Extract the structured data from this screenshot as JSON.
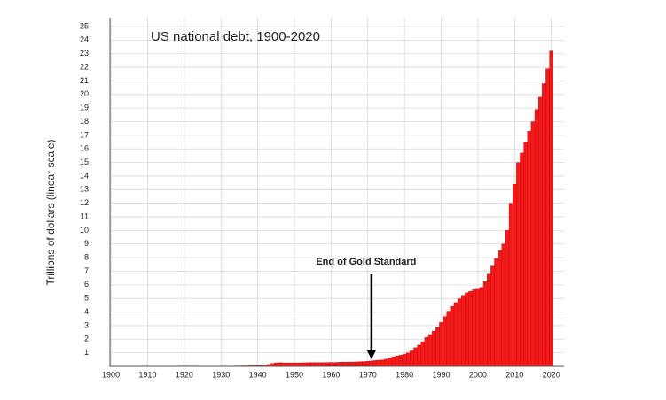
{
  "chart_data": {
    "type": "bar",
    "title": "US national debt, 1900-2020",
    "ylabel": "Trillions of dollars (linear scale)",
    "annotation": {
      "text": "End of Gold Standard",
      "x": 1971
    },
    "color": "#f21b1b",
    "grid": true,
    "xlim": [
      1899.5,
      2022.5
    ],
    "xticks": [
      1900,
      1910,
      1920,
      1930,
      1940,
      1950,
      1960,
      1970,
      1980,
      1990,
      2000,
      2010,
      2020
    ],
    "ylim": [
      0,
      25
    ],
    "yticks": [
      1,
      2,
      3,
      4,
      5,
      6,
      7,
      8,
      9,
      10,
      11,
      12,
      13,
      14,
      15,
      16,
      17,
      18,
      19,
      20,
      21,
      22,
      23,
      24,
      25
    ],
    "x": [
      1900,
      1901,
      1902,
      1903,
      1904,
      1905,
      1906,
      1907,
      1908,
      1909,
      1910,
      1911,
      1912,
      1913,
      1914,
      1915,
      1916,
      1917,
      1918,
      1919,
      1920,
      1921,
      1922,
      1923,
      1924,
      1925,
      1926,
      1927,
      1928,
      1929,
      1930,
      1931,
      1932,
      1933,
      1934,
      1935,
      1936,
      1937,
      1938,
      1939,
      1940,
      1941,
      1942,
      1943,
      1944,
      1945,
      1946,
      1947,
      1948,
      1949,
      1950,
      1951,
      1952,
      1953,
      1954,
      1955,
      1956,
      1957,
      1958,
      1959,
      1960,
      1961,
      1962,
      1963,
      1964,
      1965,
      1966,
      1967,
      1968,
      1969,
      1970,
      1971,
      1972,
      1973,
      1974,
      1975,
      1976,
      1977,
      1978,
      1979,
      1980,
      1981,
      1982,
      1983,
      1984,
      1985,
      1986,
      1987,
      1988,
      1989,
      1990,
      1991,
      1992,
      1993,
      1994,
      1995,
      1996,
      1997,
      1998,
      1999,
      2000,
      2001,
      2002,
      2003,
      2004,
      2005,
      2006,
      2007,
      2008,
      2009,
      2010,
      2011,
      2012,
      2013,
      2014,
      2015,
      2016,
      2017,
      2018,
      2019,
      2020
    ],
    "values": [
      0.001,
      0.001,
      0.001,
      0.001,
      0.001,
      0.001,
      0.001,
      0.001,
      0.001,
      0.001,
      0.001,
      0.001,
      0.001,
      0.001,
      0.001,
      0.001,
      0.001,
      0.006,
      0.012,
      0.025,
      0.024,
      0.024,
      0.023,
      0.022,
      0.021,
      0.02,
      0.019,
      0.018,
      0.018,
      0.017,
      0.016,
      0.017,
      0.019,
      0.023,
      0.027,
      0.029,
      0.034,
      0.036,
      0.037,
      0.04,
      0.043,
      0.049,
      0.072,
      0.137,
      0.201,
      0.259,
      0.269,
      0.258,
      0.252,
      0.253,
      0.257,
      0.255,
      0.259,
      0.266,
      0.271,
      0.274,
      0.273,
      0.271,
      0.276,
      0.285,
      0.291,
      0.289,
      0.298,
      0.306,
      0.312,
      0.317,
      0.32,
      0.326,
      0.348,
      0.354,
      0.371,
      0.398,
      0.427,
      0.458,
      0.475,
      0.533,
      0.62,
      0.699,
      0.772,
      0.827,
      0.908,
      0.998,
      1.142,
      1.377,
      1.572,
      1.823,
      2.125,
      2.35,
      2.602,
      2.857,
      3.233,
      3.665,
      4.065,
      4.411,
      4.693,
      4.974,
      5.225,
      5.413,
      5.526,
      5.656,
      5.674,
      5.807,
      6.228,
      6.783,
      7.379,
      7.933,
      8.507,
      9.008,
      10.0,
      12.0,
      13.4,
      15.0,
      15.7,
      16.5,
      17.3,
      18.0,
      18.9,
      19.8,
      20.8,
      21.9,
      23.2
    ]
  }
}
